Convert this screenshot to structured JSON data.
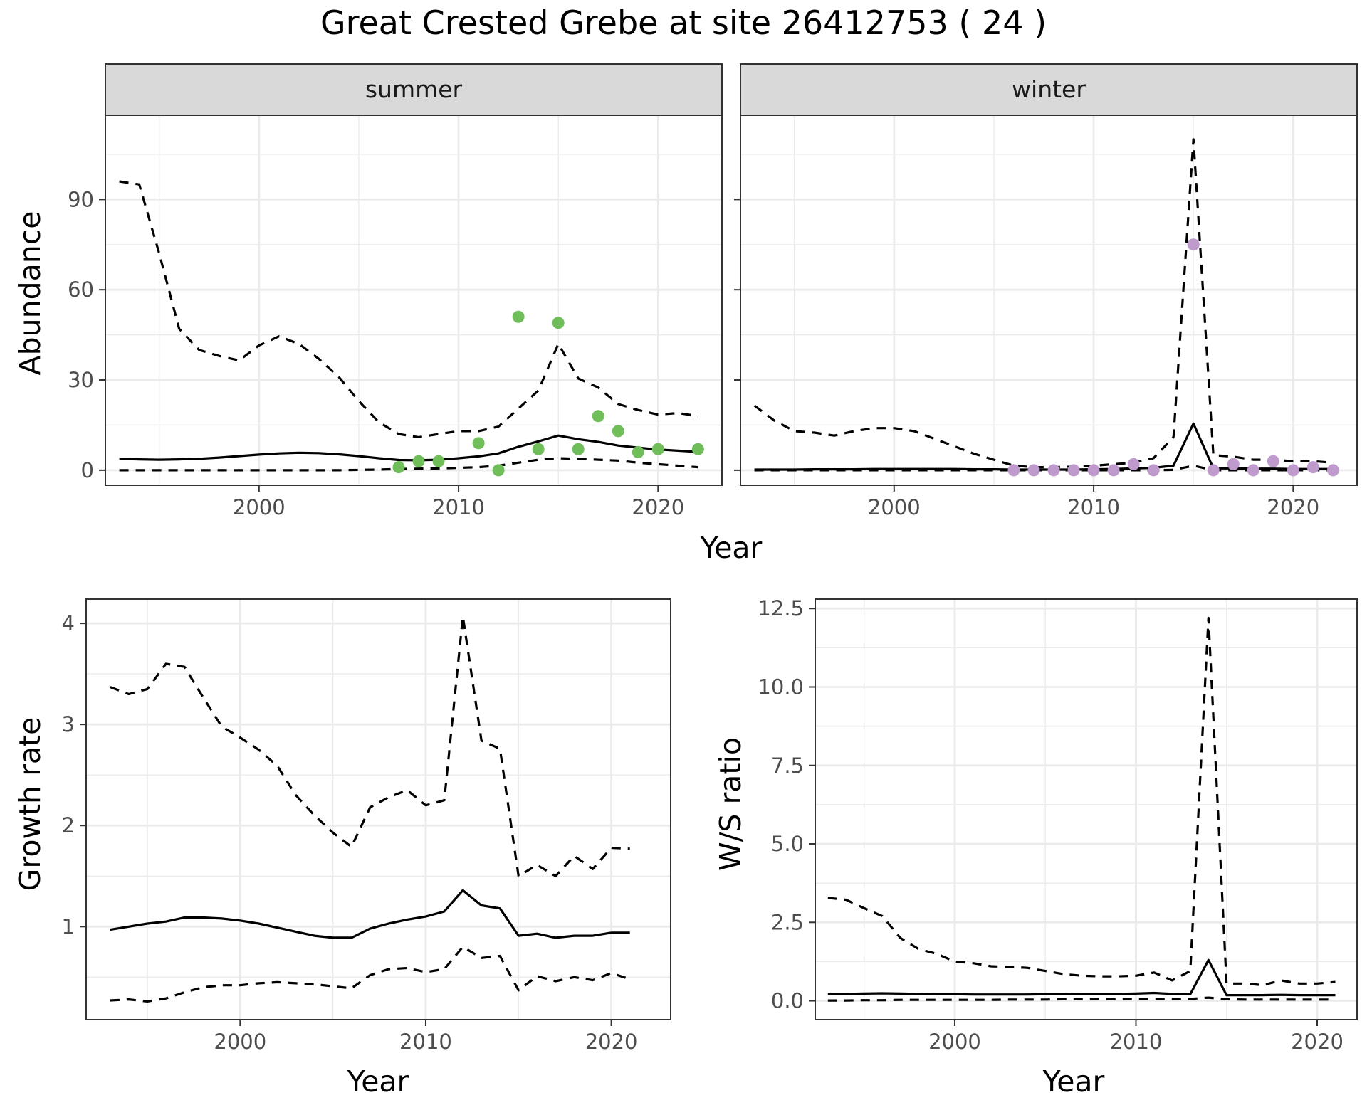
{
  "title": "Great Crested Grebe at site 26412753 ( 24 )",
  "colors": {
    "summer_points": "#6fbe5a",
    "winter_points": "#be9acd",
    "line": "#000000",
    "strip_fill": "#d9d9d9",
    "grid": "#ebebeb"
  },
  "chart_data": [
    {
      "id": "summer",
      "type": "line",
      "strip": "summer",
      "xlabel": "Year",
      "ylabel": "Abundance",
      "xlim": [
        1992.3,
        2023.2
      ],
      "ylim": [
        -5,
        118
      ],
      "xticks": [
        2000,
        2010,
        2020
      ],
      "yticks": [
        0,
        30,
        60,
        90
      ],
      "series": [
        {
          "style": "solid",
          "x": [
            1993,
            1994,
            1995,
            1996,
            1997,
            1998,
            1999,
            2000,
            2001,
            2002,
            2003,
            2004,
            2005,
            2006,
            2007,
            2008,
            2009,
            2010,
            2011,
            2012,
            2013,
            2014,
            2015,
            2016,
            2017,
            2018,
            2019,
            2020,
            2021,
            2022
          ],
          "y": [
            3.8,
            3.6,
            3.5,
            3.6,
            3.8,
            4.2,
            4.7,
            5.2,
            5.6,
            5.8,
            5.7,
            5.3,
            4.7,
            4.0,
            3.4,
            3.3,
            3.5,
            4.0,
            4.6,
            5.6,
            7.8,
            9.6,
            11.5,
            10.3,
            9.4,
            8.2,
            7.5,
            6.9,
            6.5,
            6.1
          ]
        },
        {
          "style": "dashed",
          "x": [
            1993,
            1994,
            1995,
            1996,
            1997,
            1998,
            1999,
            2000,
            2001,
            2002,
            2003,
            2004,
            2005,
            2006,
            2007,
            2008,
            2009,
            2010,
            2011,
            2012,
            2013,
            2014,
            2015,
            2016,
            2017,
            2018,
            2019,
            2020,
            2021,
            2022
          ],
          "y": [
            96,
            95,
            72,
            47,
            40,
            38,
            36.5,
            41.5,
            44.5,
            42,
            37,
            31,
            23,
            16,
            12,
            11,
            12,
            13,
            13,
            14.5,
            20.5,
            26.5,
            42,
            30.5,
            27.5,
            22,
            20,
            18.5,
            19,
            18
          ]
        },
        {
          "style": "dashed",
          "x": [
            1993,
            1994,
            1995,
            1996,
            1997,
            1998,
            1999,
            2000,
            2001,
            2002,
            2003,
            2004,
            2005,
            2006,
            2007,
            2008,
            2009,
            2010,
            2011,
            2012,
            2013,
            2014,
            2015,
            2016,
            2017,
            2018,
            2019,
            2020,
            2021,
            2022
          ],
          "y": [
            0,
            0,
            0,
            0,
            0,
            0,
            0,
            0,
            0,
            0,
            0,
            0,
            0.1,
            0.2,
            0.4,
            0.5,
            0.6,
            0.8,
            1.0,
            1.5,
            2.5,
            3.5,
            4.0,
            3.8,
            3.5,
            3.2,
            2.5,
            2.0,
            1.5,
            1.0
          ]
        }
      ],
      "points": {
        "x": [
          2007,
          2008,
          2009,
          2011,
          2012,
          2013,
          2014,
          2015,
          2016,
          2017,
          2018,
          2019,
          2020,
          2022
        ],
        "y": [
          1,
          3,
          3,
          9,
          0,
          51,
          7,
          49,
          7,
          18,
          13,
          6,
          7,
          7
        ]
      }
    },
    {
      "id": "winter",
      "type": "line",
      "strip": "winter",
      "xlabel": "Year",
      "ylabel": "Abundance",
      "xlim": [
        1992.3,
        2023.2
      ],
      "ylim": [
        -5,
        118
      ],
      "xticks": [
        2000,
        2010,
        2020
      ],
      "yticks": [
        0,
        30,
        60,
        90
      ],
      "series": [
        {
          "style": "solid",
          "x": [
            1993,
            1994,
            1995,
            1996,
            1997,
            1998,
            1999,
            2000,
            2001,
            2002,
            2003,
            2004,
            2005,
            2006,
            2007,
            2008,
            2009,
            2010,
            2011,
            2012,
            2013,
            2014,
            2015,
            2016,
            2017,
            2018,
            2019,
            2020,
            2021,
            2022
          ],
          "y": [
            0.2,
            0.2,
            0.2,
            0.3,
            0.3,
            0.3,
            0.4,
            0.4,
            0.4,
            0.4,
            0.4,
            0.3,
            0.3,
            0.2,
            0.2,
            0.2,
            0.2,
            0.3,
            0.4,
            0.6,
            0.8,
            1.5,
            15.5,
            0.6,
            0.6,
            0.5,
            0.5,
            0.4,
            0.4,
            0.4
          ]
        },
        {
          "style": "dashed",
          "x": [
            1993,
            1994,
            1995,
            1996,
            1997,
            1998,
            1999,
            2000,
            2001,
            2002,
            2003,
            2004,
            2005,
            2006,
            2007,
            2008,
            2009,
            2010,
            2011,
            2012,
            2013,
            2014,
            2015,
            2016,
            2017,
            2018,
            2019,
            2020,
            2021,
            2022
          ],
          "y": [
            21.5,
            16.5,
            13,
            12.5,
            11.5,
            13,
            14,
            14,
            13,
            10.5,
            8,
            5.5,
            3.5,
            1.5,
            1.0,
            1.0,
            1.2,
            1.5,
            2.0,
            2.5,
            4.0,
            11,
            110,
            5,
            4.5,
            3.5,
            3.5,
            3,
            3,
            2.5
          ]
        },
        {
          "style": "dashed",
          "x": [
            1993,
            1994,
            1995,
            1996,
            1997,
            1998,
            1999,
            2000,
            2001,
            2002,
            2003,
            2004,
            2005,
            2006,
            2007,
            2008,
            2009,
            2010,
            2011,
            2012,
            2013,
            2014,
            2015,
            2016,
            2017,
            2018,
            2019,
            2020,
            2021,
            2022
          ],
          "y": [
            0,
            0,
            0,
            0,
            0,
            0,
            0,
            0,
            0,
            0,
            0,
            0,
            0,
            0,
            0,
            0,
            0,
            0,
            0,
            0,
            0,
            0.1,
            1.5,
            0,
            0,
            0,
            0,
            0,
            0,
            0
          ]
        }
      ],
      "points": {
        "x": [
          2006,
          2007,
          2008,
          2009,
          2010,
          2011,
          2012,
          2013,
          2015,
          2016,
          2017,
          2018,
          2019,
          2020,
          2021,
          2022
        ],
        "y": [
          0,
          0,
          0,
          0,
          0,
          0,
          2,
          0,
          75,
          0,
          2,
          0,
          3,
          0,
          1,
          0
        ]
      }
    },
    {
      "id": "growth",
      "type": "line",
      "xlabel": "Year",
      "ylabel": "Growth rate",
      "xlim": [
        1991.7,
        2023.2
      ],
      "ylim": [
        0.08,
        4.24
      ],
      "xticks": [
        2000,
        2010,
        2020
      ],
      "yticks": [
        1,
        2,
        3,
        4
      ],
      "series": [
        {
          "style": "solid",
          "x": [
            1993,
            1994,
            1995,
            1996,
            1997,
            1998,
            1999,
            2000,
            2001,
            2002,
            2003,
            2004,
            2005,
            2006,
            2007,
            2008,
            2009,
            2010,
            2011,
            2012,
            2013,
            2014,
            2015,
            2016,
            2017,
            2018,
            2019,
            2020,
            2021
          ],
          "y": [
            0.97,
            1.0,
            1.03,
            1.05,
            1.09,
            1.09,
            1.08,
            1.06,
            1.03,
            0.99,
            0.95,
            0.91,
            0.89,
            0.89,
            0.98,
            1.03,
            1.07,
            1.1,
            1.15,
            1.36,
            1.21,
            1.18,
            0.91,
            0.93,
            0.89,
            0.91,
            0.91,
            0.94,
            0.94
          ]
        },
        {
          "style": "dashed",
          "x": [
            1993,
            1994,
            1995,
            1996,
            1997,
            1998,
            1999,
            2000,
            2001,
            2002,
            2003,
            2004,
            2005,
            2006,
            2007,
            2008,
            2009,
            2010,
            2011,
            2012,
            2013,
            2014,
            2015,
            2016,
            2017,
            2018,
            2019,
            2020,
            2021
          ],
          "y": [
            3.37,
            3.3,
            3.35,
            3.6,
            3.57,
            3.27,
            2.98,
            2.87,
            2.75,
            2.59,
            2.3,
            2.1,
            1.93,
            1.79,
            2.18,
            2.28,
            2.35,
            2.2,
            2.25,
            4.07,
            2.84,
            2.76,
            1.5,
            1.61,
            1.5,
            1.7,
            1.57,
            1.78,
            1.77
          ]
        },
        {
          "style": "dashed",
          "x": [
            1993,
            1994,
            1995,
            1996,
            1997,
            1998,
            1999,
            2000,
            2001,
            2002,
            2003,
            2004,
            2005,
            2006,
            2007,
            2008,
            2009,
            2010,
            2011,
            2012,
            2013,
            2014,
            2015,
            2016,
            2017,
            2018,
            2019,
            2020,
            2021
          ],
          "y": [
            0.27,
            0.28,
            0.26,
            0.29,
            0.35,
            0.4,
            0.42,
            0.42,
            0.44,
            0.45,
            0.44,
            0.43,
            0.41,
            0.39,
            0.52,
            0.58,
            0.59,
            0.55,
            0.58,
            0.8,
            0.69,
            0.71,
            0.37,
            0.51,
            0.46,
            0.5,
            0.47,
            0.54,
            0.48
          ]
        }
      ]
    },
    {
      "id": "wsratio",
      "type": "line",
      "xlabel": "Year",
      "ylabel": "W/S ratio",
      "xlim": [
        1992.3,
        2022.2
      ],
      "ylim": [
        -0.6,
        12.8
      ],
      "xticks": [
        2000,
        2010,
        2020
      ],
      "yticks": [
        0.0,
        2.5,
        5.0,
        7.5,
        10.0,
        12.5
      ],
      "ytick_labels": [
        "0.0",
        "2.5",
        "5.0",
        "7.5",
        "10.0",
        "12.5"
      ],
      "series": [
        {
          "style": "solid",
          "x": [
            1993,
            1994,
            1995,
            1996,
            1997,
            1998,
            1999,
            2000,
            2001,
            2002,
            2003,
            2004,
            2005,
            2006,
            2007,
            2008,
            2009,
            2010,
            2011,
            2012,
            2013,
            2014,
            2015,
            2016,
            2017,
            2018,
            2019,
            2020,
            2021
          ],
          "y": [
            0.22,
            0.22,
            0.23,
            0.24,
            0.23,
            0.22,
            0.21,
            0.21,
            0.2,
            0.2,
            0.2,
            0.2,
            0.21,
            0.21,
            0.22,
            0.22,
            0.22,
            0.23,
            0.25,
            0.22,
            0.21,
            1.3,
            0.18,
            0.18,
            0.18,
            0.19,
            0.18,
            0.18,
            0.18
          ]
        },
        {
          "style": "dashed",
          "x": [
            1993,
            1994,
            1995,
            1996,
            1997,
            1998,
            1999,
            2000,
            2001,
            2002,
            2003,
            2004,
            2005,
            2006,
            2007,
            2008,
            2009,
            2010,
            2011,
            2012,
            2013,
            2014,
            2015,
            2016,
            2017,
            2018,
            2019,
            2020,
            2021
          ],
          "y": [
            3.28,
            3.22,
            2.95,
            2.7,
            2.0,
            1.65,
            1.5,
            1.25,
            1.2,
            1.1,
            1.08,
            1.05,
            0.95,
            0.85,
            0.8,
            0.78,
            0.78,
            0.8,
            0.9,
            0.65,
            0.95,
            12.2,
            0.55,
            0.55,
            0.5,
            0.65,
            0.55,
            0.55,
            0.6
          ]
        },
        {
          "style": "dashed",
          "x": [
            1993,
            1994,
            1995,
            1996,
            1997,
            1998,
            1999,
            2000,
            2001,
            2002,
            2003,
            2004,
            2005,
            2006,
            2007,
            2008,
            2009,
            2010,
            2011,
            2012,
            2013,
            2014,
            2015,
            2016,
            2017,
            2018,
            2019,
            2020,
            2021
          ],
          "y": [
            0.01,
            0.01,
            0.02,
            0.02,
            0.03,
            0.03,
            0.03,
            0.03,
            0.03,
            0.03,
            0.04,
            0.04,
            0.04,
            0.05,
            0.05,
            0.05,
            0.05,
            0.06,
            0.06,
            0.06,
            0.06,
            0.1,
            0.05,
            0.04,
            0.04,
            0.04,
            0.04,
            0.04,
            0.04
          ]
        }
      ]
    }
  ]
}
